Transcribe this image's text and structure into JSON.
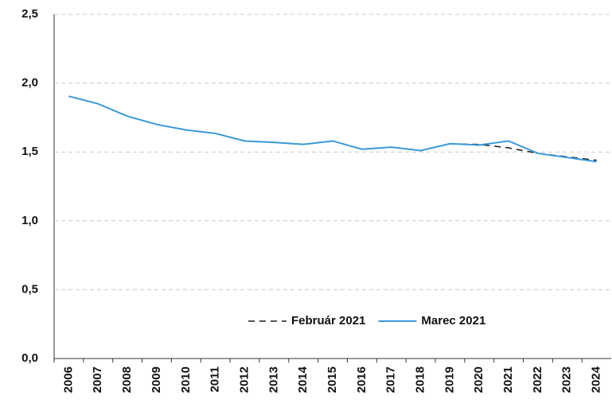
{
  "chart_data": {
    "type": "line",
    "categories": [
      "2006",
      "2007",
      "2008",
      "2009",
      "2010",
      "2011",
      "2012",
      "2013",
      "2014",
      "2015",
      "2016",
      "2017",
      "2018",
      "2019",
      "2020",
      "2021",
      "2022",
      "2023",
      "2024"
    ],
    "series": [
      {
        "name": "Február 2021",
        "color": "#1a1a1a",
        "dashed": true,
        "values": [
          1.905,
          1.85,
          1.76,
          1.7,
          1.66,
          1.635,
          1.58,
          1.57,
          1.555,
          1.58,
          1.52,
          1.535,
          1.51,
          1.56,
          1.555,
          1.53,
          1.49,
          1.465,
          1.44
        ]
      },
      {
        "name": "Marec 2021",
        "color": "#3a9ad9",
        "dashed": false,
        "values": [
          1.905,
          1.85,
          1.76,
          1.7,
          1.66,
          1.635,
          1.58,
          1.57,
          1.555,
          1.58,
          1.52,
          1.535,
          1.51,
          1.56,
          1.55,
          1.58,
          1.49,
          1.46,
          1.43
        ]
      }
    ],
    "ylim": [
      0,
      2.5
    ],
    "yticks": [
      {
        "value": 0,
        "label": "0,0"
      },
      {
        "value": 0.5,
        "label": "0,5"
      },
      {
        "value": 1,
        "label": "1,0"
      },
      {
        "value": 1.5,
        "label": "1,5"
      },
      {
        "value": 2,
        "label": "2,0"
      },
      {
        "value": 2.5,
        "label": "2,5"
      }
    ],
    "grid": true,
    "legend": "bottom"
  }
}
